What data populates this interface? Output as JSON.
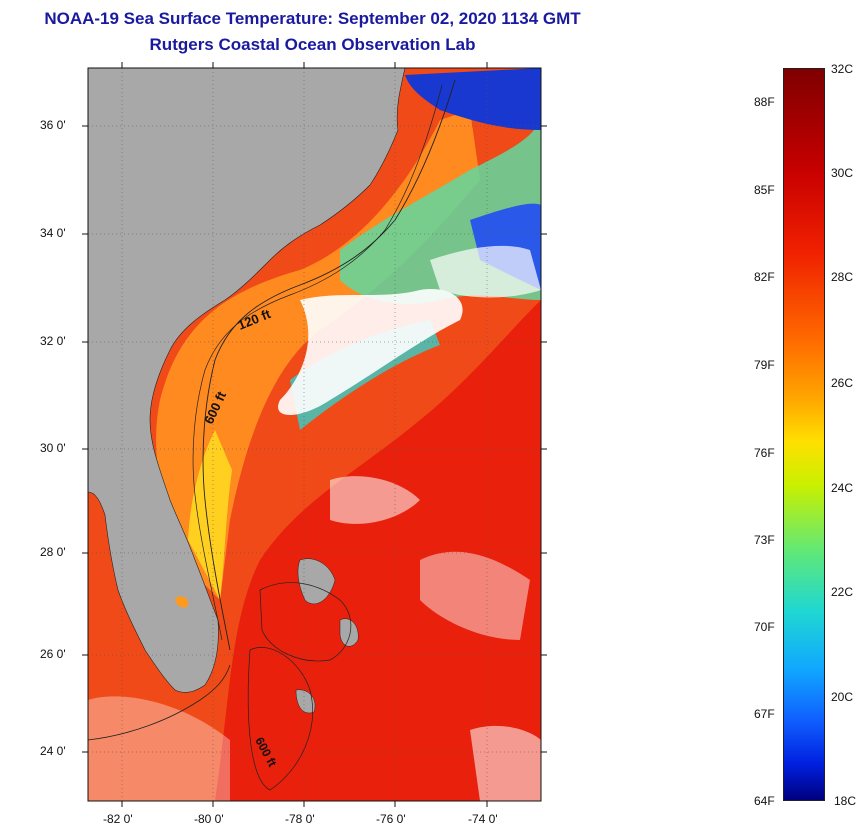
{
  "header": {
    "title_line1": "NOAA-19 Sea Surface Temperature:  September 02, 2020 1134 GMT",
    "title_line2": "Rutgers Coastal Ocean Observation Lab"
  },
  "map": {
    "lat_labels": [
      "36 0'",
      "34 0'",
      "32 0'",
      "30 0'",
      "28 0'",
      "26 0'",
      "24 0'"
    ],
    "lon_labels": [
      "-82 0'",
      "-80 0'",
      "-78 0'",
      "-76 0'",
      "-74 0'"
    ],
    "isobath_labels": [
      "120 ft",
      "600 ft",
      "600 ft"
    ],
    "colors": {
      "land": "#a8a8a8",
      "warm": "#f03c14",
      "cloud": "#ffffff",
      "cold": "#1030d0"
    }
  },
  "colorbar": {
    "fahrenheit_labels": [
      "88F",
      "85F",
      "82F",
      "79F",
      "76F",
      "73F",
      "70F",
      "67F",
      "64F"
    ],
    "celsius_labels": [
      "32C",
      "30C",
      "28C",
      "26C",
      "24C",
      "22C",
      "20C",
      "18C"
    ]
  }
}
